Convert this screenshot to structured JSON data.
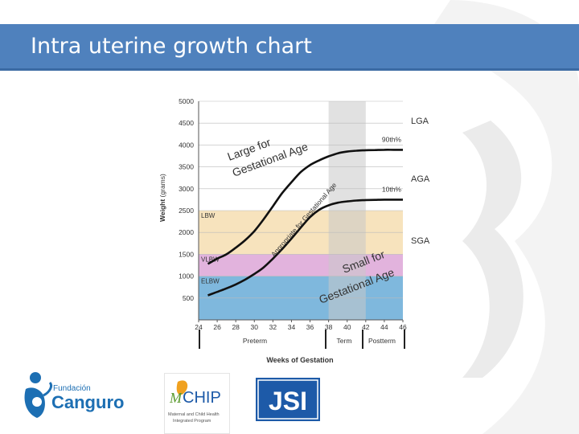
{
  "slide": {
    "title": "Intra uterine growth chart"
  },
  "colors": {
    "header": "#4f81bd",
    "lbw_band": "#f7e3bd",
    "vlbw_band": "#e2b3dd",
    "elbw_band": "#7fb8dd",
    "term_band": "#c9c9c9",
    "curve": "#111111"
  },
  "chart_data": {
    "type": "line",
    "xlabel": "Weeks of Gestation",
    "ylabel": "Weight",
    "ylabel_unit": "(grams)",
    "xlim": [
      24,
      46
    ],
    "ylim": [
      0,
      5000
    ],
    "x_ticks": [
      "24",
      "26",
      "28",
      "30",
      "32",
      "34",
      "36",
      "38",
      "40",
      "42",
      "44",
      "46"
    ],
    "y_ticks": [
      "500",
      "1000",
      "1500",
      "2000",
      "2500",
      "3000",
      "3500",
      "4000",
      "4500",
      "5000"
    ],
    "grid": "horizontal",
    "bands": [
      {
        "label": "ELBW",
        "from": 0,
        "to": 1000,
        "color": "#7fb8dd"
      },
      {
        "label": "VLBW",
        "from": 1000,
        "to": 1500,
        "color": "#e2b3dd"
      },
      {
        "label": "LBW",
        "from": 1500,
        "to": 2500,
        "color": "#f7e3bd"
      }
    ],
    "term_window": {
      "from": 38,
      "to": 42
    },
    "series": [
      {
        "name": "90th%",
        "x": [
          25,
          26,
          27,
          28,
          29,
          30,
          31,
          32,
          33,
          34,
          35,
          36,
          37,
          38,
          39,
          40,
          41,
          42,
          43,
          44,
          45,
          46
        ],
        "y": [
          1280,
          1400,
          1500,
          1650,
          1820,
          2030,
          2300,
          2600,
          2900,
          3150,
          3380,
          3540,
          3650,
          3740,
          3810,
          3850,
          3870,
          3880,
          3885,
          3890,
          3890,
          3890
        ]
      },
      {
        "name": "10th%",
        "x": [
          25,
          26,
          27,
          28,
          29,
          30,
          31,
          32,
          33,
          34,
          35,
          36,
          37,
          38,
          39,
          40,
          41,
          42,
          43,
          44,
          45,
          46
        ],
        "y": [
          560,
          640,
          720,
          810,
          920,
          1050,
          1200,
          1400,
          1620,
          1860,
          2110,
          2350,
          2520,
          2620,
          2680,
          2710,
          2730,
          2740,
          2745,
          2750,
          2750,
          2750
        ]
      }
    ],
    "curve_labels": [
      "90th%",
      "10th%"
    ],
    "zone_texts": [
      {
        "lines": [
          "Large for",
          "Gestational Age"
        ]
      },
      {
        "lines": [
          "Appropriate for Gestational Age"
        ]
      },
      {
        "lines": [
          "Small for",
          "Gestational Age"
        ]
      }
    ],
    "right_labels": [
      "LGA",
      "AGA",
      "SGA"
    ],
    "periods": [
      "Preterm",
      "Term",
      "Postterm"
    ]
  },
  "logos": {
    "canguro": {
      "small": "Fundación",
      "big": "Canguro"
    },
    "mchip": {
      "name": "CHIP",
      "initial": "M",
      "line1": "Maternal and Child Health",
      "line2": "Integrated Program"
    },
    "jsi": {
      "name": "JSI"
    }
  }
}
